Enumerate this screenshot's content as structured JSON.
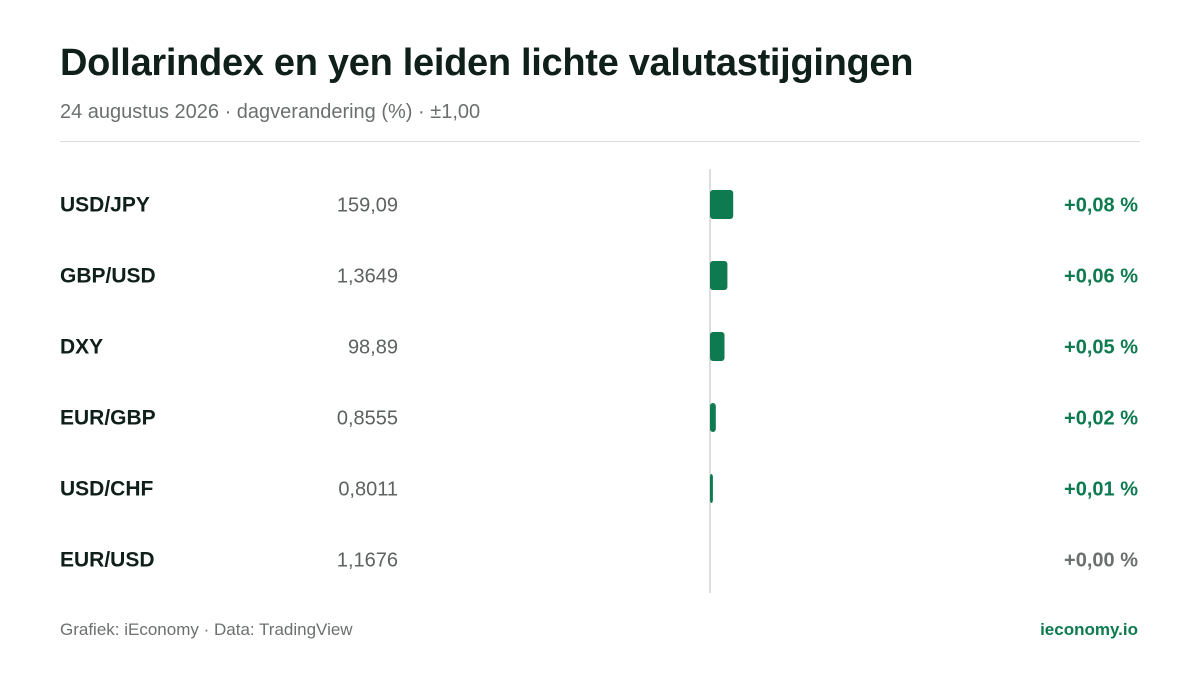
{
  "chart_data": {
    "type": "bar",
    "title": "Dollarindex en yen leiden lichte valutastijgingen",
    "subtitle": "24 augustus 2026 · dagverandering (%) · ±1,00",
    "categories": [
      "USD/JPY",
      "GBP/USD",
      "DXY",
      "EUR/GBP",
      "USD/CHF",
      "EUR/USD"
    ],
    "prices": [
      "159,09",
      "1,3649",
      "98,89",
      "0,8555",
      "0,8011",
      "1,1676"
    ],
    "values": [
      0.08,
      0.06,
      0.05,
      0.02,
      0.01,
      0.0
    ],
    "value_labels": [
      "+0,08 %",
      "+0,06 %",
      "+0,05 %",
      "+0,02 %",
      "+0,01 %",
      "+0,00 %"
    ],
    "xlim": [
      -1,
      1
    ],
    "colors": {
      "positive": "#0e7a4f",
      "neutral": "#6b706e",
      "axis": "#d0d3d2"
    }
  },
  "footer": {
    "source": "Grafiek: iEconomy · Data: TradingView",
    "brand": "ieconomy.io"
  }
}
